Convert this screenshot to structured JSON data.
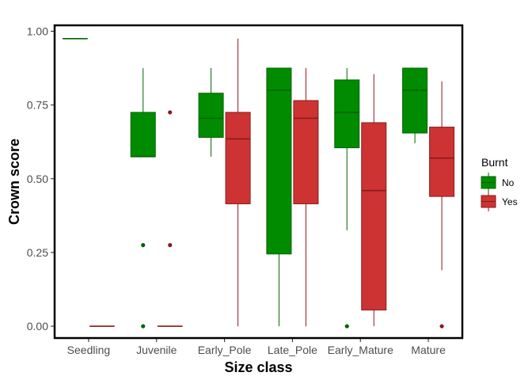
{
  "chart_data": {
    "type": "boxplot",
    "xlabel": "Size class",
    "ylabel": "Crown score",
    "ylim": [
      -0.04,
      1.02
    ],
    "yticks": [
      "0.00",
      "0.25",
      "0.50",
      "0.75",
      "1.00"
    ],
    "categories": [
      "Seedling",
      "Juvenile",
      "Early_Pole",
      "Late_Pole",
      "Early_Mature",
      "Mature"
    ],
    "legend": {
      "title": "Burnt",
      "entries": [
        "No",
        "Yes"
      ],
      "position": "right"
    },
    "colors": {
      "No": "#008b00",
      "Yes": "#cd3333",
      "No_line": "#006400",
      "Yes_line": "#8b1a1a"
    },
    "series": [
      {
        "name": "No",
        "boxes": [
          {
            "category": "Seedling",
            "min": 0.975,
            "q1": 0.975,
            "median": 0.975,
            "q3": 0.975,
            "max": 0.975,
            "outliers": []
          },
          {
            "category": "Juvenile",
            "min": 0.575,
            "q1": 0.575,
            "median": 0.575,
            "q3": 0.725,
            "max": 0.875,
            "outliers": [
              0.275,
              0.0
            ]
          },
          {
            "category": "Early_Pole",
            "min": 0.575,
            "q1": 0.64,
            "median": 0.705,
            "q3": 0.79,
            "max": 0.875,
            "outliers": []
          },
          {
            "category": "Late_Pole",
            "min": 0.0,
            "q1": 0.245,
            "median": 0.8,
            "q3": 0.875,
            "max": 0.875,
            "outliers": []
          },
          {
            "category": "Early_Mature",
            "min": 0.325,
            "q1": 0.605,
            "median": 0.725,
            "q3": 0.835,
            "max": 0.875,
            "outliers": [
              0.0
            ]
          },
          {
            "category": "Mature",
            "min": 0.62,
            "q1": 0.655,
            "median": 0.8,
            "q3": 0.875,
            "max": 0.875,
            "outliers": []
          }
        ]
      },
      {
        "name": "Yes",
        "boxes": [
          {
            "category": "Seedling",
            "min": 0.0,
            "q1": 0.0,
            "median": 0.0,
            "q3": 0.0,
            "max": 0.0,
            "outliers": []
          },
          {
            "category": "Juvenile",
            "min": 0.0,
            "q1": 0.0,
            "median": 0.0,
            "q3": 0.0,
            "max": 0.0,
            "outliers": [
              0.725,
              0.275
            ]
          },
          {
            "category": "Early_Pole",
            "min": 0.0,
            "q1": 0.415,
            "median": 0.635,
            "q3": 0.725,
            "max": 0.975,
            "outliers": []
          },
          {
            "category": "Late_Pole",
            "min": 0.0,
            "q1": 0.415,
            "median": 0.705,
            "q3": 0.765,
            "max": 0.875,
            "outliers": []
          },
          {
            "category": "Early_Mature",
            "min": 0.0,
            "q1": 0.055,
            "median": 0.46,
            "q3": 0.69,
            "max": 0.855,
            "outliers": []
          },
          {
            "category": "Mature",
            "min": 0.19,
            "q1": 0.44,
            "median": 0.57,
            "q3": 0.675,
            "max": 0.83,
            "outliers": [
              0.0
            ]
          }
        ]
      }
    ]
  }
}
